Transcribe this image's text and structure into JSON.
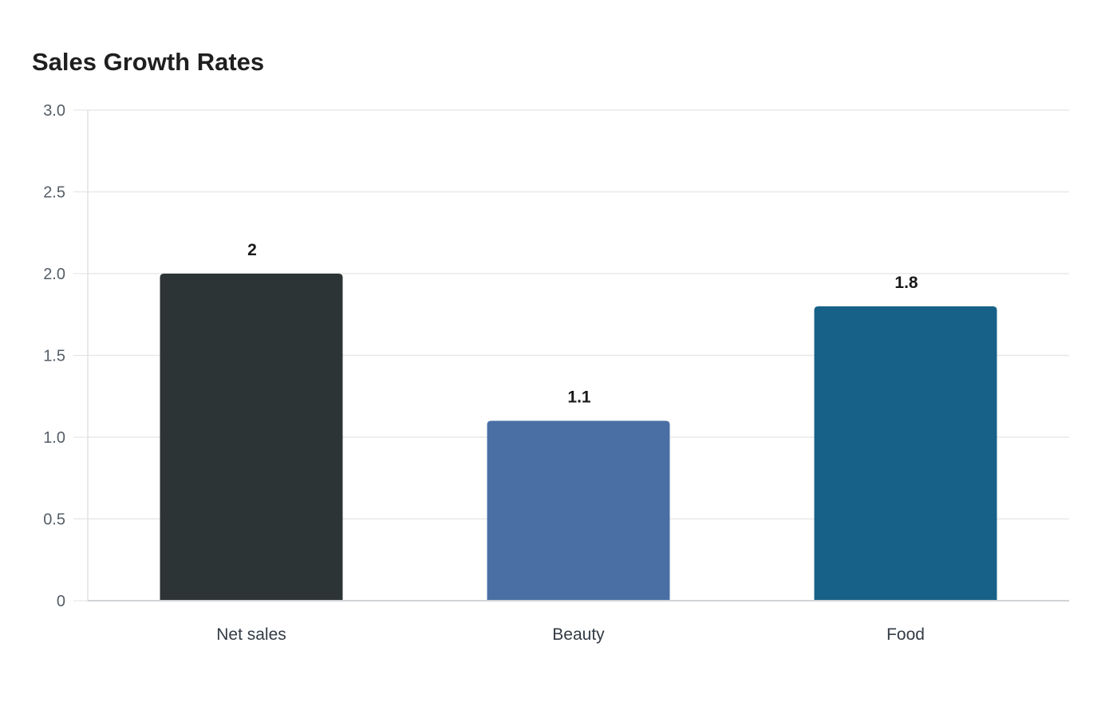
{
  "chart_data": {
    "type": "bar",
    "title": "Sales Growth Rates",
    "xlabel": "",
    "ylabel": "",
    "categories": [
      "Net sales",
      "Beauty",
      "Food"
    ],
    "values": [
      2,
      1.1,
      1.8
    ],
    "value_labels": [
      "2",
      "1.1",
      "1.8"
    ],
    "bar_colors": [
      "#2d3436",
      "#4a6fa5",
      "#176188"
    ],
    "ylim": [
      0,
      3.0
    ],
    "y_ticks": [
      0,
      0.5,
      1.0,
      1.5,
      2.0,
      2.5,
      3.0
    ],
    "y_tick_labels": [
      "0",
      "0.5",
      "1.0",
      "1.5",
      "2.0",
      "2.5",
      "3.0"
    ],
    "grid": true,
    "legend": "none"
  }
}
